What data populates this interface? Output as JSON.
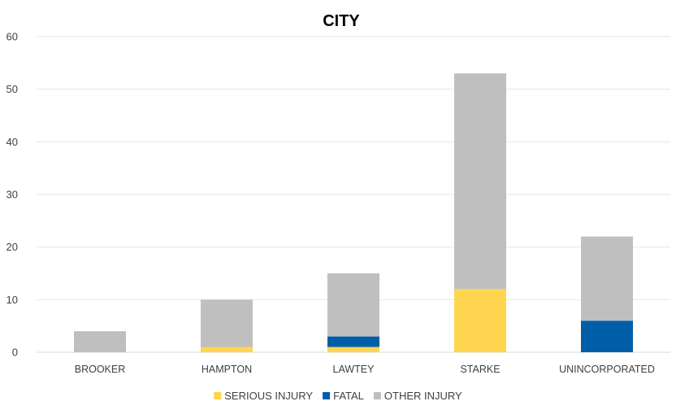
{
  "chart_data": {
    "type": "bar",
    "stacked": true,
    "title": "CITY",
    "xlabel": "",
    "ylabel": "",
    "categories": [
      "BROOKER",
      "HAMPTON",
      "LAWTEY",
      "STARKE",
      "UNINCORPORATED"
    ],
    "series": [
      {
        "name": "SERIOUS INJURY",
        "color": "#FFD54F",
        "values": [
          0,
          1,
          1,
          12,
          0
        ]
      },
      {
        "name": "FATAL",
        "color": "#005EA8",
        "values": [
          0,
          0,
          2,
          0,
          6
        ]
      },
      {
        "name": "OTHER INJURY",
        "color": "#BFBFBF",
        "values": [
          4,
          9,
          12,
          41,
          16
        ]
      }
    ],
    "ylim": [
      0,
      60
    ],
    "yticks": [
      0,
      10,
      20,
      30,
      40,
      50,
      60
    ],
    "grid": true,
    "legend_position": "bottom"
  }
}
